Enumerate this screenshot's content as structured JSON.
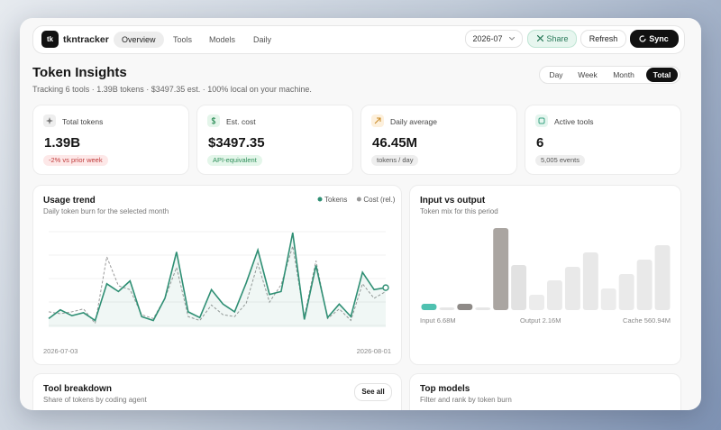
{
  "app": {
    "logo": "tk",
    "name": "tkntracker",
    "nav": [
      "Overview",
      "Tools",
      "Models",
      "Daily"
    ],
    "month": "2026-07",
    "actions": [
      "Share",
      "Refresh",
      "Sync"
    ]
  },
  "header": {
    "title": "Token Insights",
    "subtitle": "Tracking 6 tools · 1.39B tokens · $3497.35 est. · 100% local on your machine.",
    "periods": [
      "Day",
      "Week",
      "Month",
      "Total"
    ]
  },
  "stats": [
    {
      "label": "Total tokens",
      "value": "1.39B",
      "badge": "-2% vs prior week"
    },
    {
      "label": "Est. cost",
      "value": "$3497.35",
      "badge": "API-equivalent"
    },
    {
      "label": "Daily average",
      "value": "46.45M",
      "badge": "tokens / day"
    },
    {
      "label": "Active tools",
      "value": "6",
      "badge": "5,005 events"
    }
  ],
  "usage_trend": {
    "type": "line",
    "title": "Usage trend",
    "subtitle": "Daily token burn for the selected month",
    "ylim": [
      0,
      100
    ],
    "series": [
      {
        "name": "Tokens",
        "color": "#2f8f74",
        "values": [
          9,
          18,
          12,
          15,
          7,
          45,
          37,
          48,
          11,
          7,
          30,
          78,
          16,
          10,
          39,
          24,
          16,
          46,
          80,
          34,
          37,
          98,
          8,
          64,
          10,
          24,
          11,
          57,
          39,
          41
        ]
      },
      {
        "name": "Cost (rel.)",
        "color": "#9a9a9a",
        "values": [
          16,
          14,
          16,
          19,
          4,
          73,
          43,
          39,
          13,
          9,
          30,
          62,
          11,
          7,
          23,
          13,
          11,
          25,
          66,
          26,
          44,
          84,
          11,
          69,
          9,
          19,
          7,
          45,
          30,
          37
        ]
      }
    ],
    "x_labels": [
      "2026-07-03",
      "2026-08-01"
    ]
  },
  "input_output": {
    "type": "bar",
    "title": "Input vs output",
    "subtitle": "Token mix for this period",
    "ylim": [
      0,
      100
    ],
    "values": [
      7,
      3,
      7,
      3,
      91,
      50,
      17,
      33,
      48,
      64,
      24,
      40,
      56,
      72
    ],
    "colors": [
      "#4fc1b0",
      "#e6e6e6",
      "#8e8a87",
      "#e6e6e6",
      "#aaa5a1",
      "#e2e2e2",
      "#ececec",
      "#eaeaea",
      "#e9e9e9",
      "#e8e8e8",
      "#ececec",
      "#eaeaea",
      "#e9e9e9",
      "#e8e8e8"
    ],
    "labels": [
      "Input 6.68M",
      "Output 2.16M",
      "Cache 560.94M"
    ]
  },
  "tool_breakdown": {
    "title": "Tool breakdown",
    "subtitle": "Share of tokens by coding agent",
    "button": "See all"
  },
  "top_models": {
    "title": "Top models",
    "subtitle": "Filter and rank by token burn"
  }
}
